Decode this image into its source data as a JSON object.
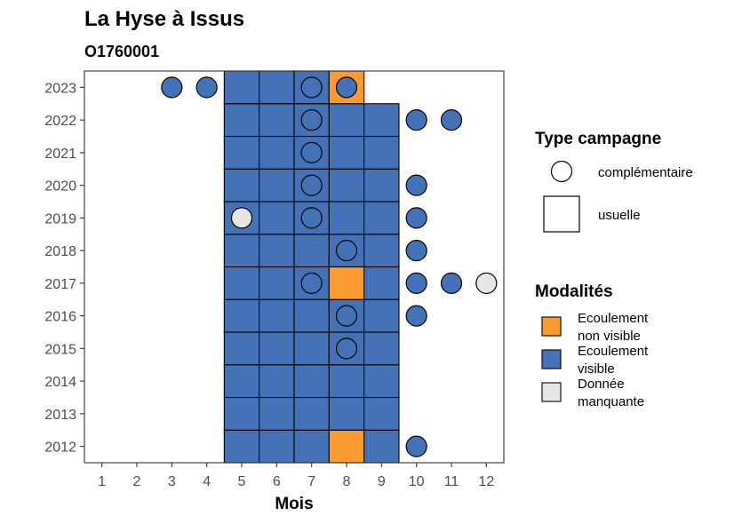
{
  "chart_data": {
    "type": "tile-scatter",
    "title": "La Hyse à Issus",
    "subtitle": "O1760001",
    "xlabel": "Mois",
    "ylabel": "",
    "x_ticks": [
      "1",
      "2",
      "3",
      "4",
      "5",
      "6",
      "7",
      "8",
      "9",
      "10",
      "11",
      "12"
    ],
    "y_ticks": [
      "2012",
      "2013",
      "2014",
      "2015",
      "2016",
      "2017",
      "2018",
      "2019",
      "2020",
      "2021",
      "2022",
      "2023"
    ],
    "xlim": [
      0.5,
      12.5
    ],
    "ylim": [
      2011.5,
      2023.5
    ],
    "grid": false,
    "legend_position": "right",
    "colors": {
      "ecoulement_non_visible": "#FD9B30",
      "ecoulement_visible": "#4572B7",
      "donnee_manquante": "#E6E6E6"
    },
    "legend_type": {
      "title": "Type campagne",
      "items": [
        {
          "key": "complementaire",
          "label": "complémentaire",
          "shape": "circle"
        },
        {
          "key": "usuelle",
          "label": "usuelle",
          "shape": "square"
        }
      ]
    },
    "legend_modalite": {
      "title": "Modalités",
      "items": [
        {
          "key": "ecoulement_non_visible",
          "lines": [
            "Ecoulement",
            "non visible"
          ]
        },
        {
          "key": "ecoulement_visible",
          "lines": [
            "Ecoulement",
            "visible"
          ]
        },
        {
          "key": "donnee_manquante",
          "lines": [
            "Donnée",
            "manquante"
          ]
        }
      ]
    },
    "usuelle": [
      {
        "year": 2012,
        "month": 5,
        "m": "ecoulement_visible"
      },
      {
        "year": 2012,
        "month": 6,
        "m": "ecoulement_visible"
      },
      {
        "year": 2012,
        "month": 7,
        "m": "ecoulement_visible"
      },
      {
        "year": 2012,
        "month": 8,
        "m": "ecoulement_non_visible"
      },
      {
        "year": 2012,
        "month": 9,
        "m": "ecoulement_visible"
      },
      {
        "year": 2013,
        "month": 5,
        "m": "ecoulement_visible"
      },
      {
        "year": 2013,
        "month": 6,
        "m": "ecoulement_visible"
      },
      {
        "year": 2013,
        "month": 7,
        "m": "ecoulement_visible"
      },
      {
        "year": 2013,
        "month": 8,
        "m": "ecoulement_visible"
      },
      {
        "year": 2013,
        "month": 9,
        "m": "ecoulement_visible"
      },
      {
        "year": 2014,
        "month": 5,
        "m": "ecoulement_visible"
      },
      {
        "year": 2014,
        "month": 6,
        "m": "ecoulement_visible"
      },
      {
        "year": 2014,
        "month": 7,
        "m": "ecoulement_visible"
      },
      {
        "year": 2014,
        "month": 8,
        "m": "ecoulement_visible"
      },
      {
        "year": 2014,
        "month": 9,
        "m": "ecoulement_visible"
      },
      {
        "year": 2015,
        "month": 5,
        "m": "ecoulement_visible"
      },
      {
        "year": 2015,
        "month": 6,
        "m": "ecoulement_visible"
      },
      {
        "year": 2015,
        "month": 7,
        "m": "ecoulement_visible"
      },
      {
        "year": 2015,
        "month": 8,
        "m": "ecoulement_visible"
      },
      {
        "year": 2015,
        "month": 9,
        "m": "ecoulement_visible"
      },
      {
        "year": 2016,
        "month": 5,
        "m": "ecoulement_visible"
      },
      {
        "year": 2016,
        "month": 6,
        "m": "ecoulement_visible"
      },
      {
        "year": 2016,
        "month": 7,
        "m": "ecoulement_visible"
      },
      {
        "year": 2016,
        "month": 8,
        "m": "ecoulement_visible"
      },
      {
        "year": 2016,
        "month": 9,
        "m": "ecoulement_visible"
      },
      {
        "year": 2017,
        "month": 5,
        "m": "ecoulement_visible"
      },
      {
        "year": 2017,
        "month": 6,
        "m": "ecoulement_visible"
      },
      {
        "year": 2017,
        "month": 7,
        "m": "ecoulement_visible"
      },
      {
        "year": 2017,
        "month": 8,
        "m": "ecoulement_non_visible"
      },
      {
        "year": 2017,
        "month": 9,
        "m": "ecoulement_visible"
      },
      {
        "year": 2018,
        "month": 5,
        "m": "ecoulement_visible"
      },
      {
        "year": 2018,
        "month": 6,
        "m": "ecoulement_visible"
      },
      {
        "year": 2018,
        "month": 7,
        "m": "ecoulement_visible"
      },
      {
        "year": 2018,
        "month": 8,
        "m": "ecoulement_visible"
      },
      {
        "year": 2018,
        "month": 9,
        "m": "ecoulement_visible"
      },
      {
        "year": 2019,
        "month": 5,
        "m": "ecoulement_visible"
      },
      {
        "year": 2019,
        "month": 6,
        "m": "ecoulement_visible"
      },
      {
        "year": 2019,
        "month": 7,
        "m": "ecoulement_visible"
      },
      {
        "year": 2019,
        "month": 8,
        "m": "ecoulement_visible"
      },
      {
        "year": 2019,
        "month": 9,
        "m": "ecoulement_visible"
      },
      {
        "year": 2020,
        "month": 5,
        "m": "ecoulement_visible"
      },
      {
        "year": 2020,
        "month": 6,
        "m": "ecoulement_visible"
      },
      {
        "year": 2020,
        "month": 7,
        "m": "ecoulement_visible"
      },
      {
        "year": 2020,
        "month": 8,
        "m": "ecoulement_visible"
      },
      {
        "year": 2020,
        "month": 9,
        "m": "ecoulement_visible"
      },
      {
        "year": 2021,
        "month": 5,
        "m": "ecoulement_visible"
      },
      {
        "year": 2021,
        "month": 6,
        "m": "ecoulement_visible"
      },
      {
        "year": 2021,
        "month": 7,
        "m": "ecoulement_visible"
      },
      {
        "year": 2021,
        "month": 8,
        "m": "ecoulement_visible"
      },
      {
        "year": 2021,
        "month": 9,
        "m": "ecoulement_visible"
      },
      {
        "year": 2022,
        "month": 5,
        "m": "ecoulement_visible"
      },
      {
        "year": 2022,
        "month": 6,
        "m": "ecoulement_visible"
      },
      {
        "year": 2022,
        "month": 7,
        "m": "ecoulement_visible"
      },
      {
        "year": 2022,
        "month": 8,
        "m": "ecoulement_visible"
      },
      {
        "year": 2022,
        "month": 9,
        "m": "ecoulement_visible"
      },
      {
        "year": 2023,
        "month": 5,
        "m": "ecoulement_visible"
      },
      {
        "year": 2023,
        "month": 6,
        "m": "ecoulement_visible"
      },
      {
        "year": 2023,
        "month": 7,
        "m": "ecoulement_visible"
      },
      {
        "year": 2023,
        "month": 8,
        "m": "ecoulement_non_visible"
      }
    ],
    "complementaire": [
      {
        "year": 2012,
        "month": 10,
        "m": "ecoulement_visible"
      },
      {
        "year": 2015,
        "month": 8,
        "m": "ecoulement_visible"
      },
      {
        "year": 2016,
        "month": 8,
        "m": "ecoulement_visible"
      },
      {
        "year": 2016,
        "month": 10,
        "m": "ecoulement_visible"
      },
      {
        "year": 2017,
        "month": 7,
        "m": "ecoulement_visible"
      },
      {
        "year": 2017,
        "month": 10,
        "m": "ecoulement_visible"
      },
      {
        "year": 2017,
        "month": 11,
        "m": "ecoulement_visible"
      },
      {
        "year": 2017,
        "month": 12,
        "m": "donnee_manquante"
      },
      {
        "year": 2018,
        "month": 8,
        "m": "ecoulement_visible"
      },
      {
        "year": 2018,
        "month": 10,
        "m": "ecoulement_visible"
      },
      {
        "year": 2019,
        "month": 5,
        "m": "donnee_manquante"
      },
      {
        "year": 2019,
        "month": 7,
        "m": "ecoulement_visible"
      },
      {
        "year": 2019,
        "month": 10,
        "m": "ecoulement_visible"
      },
      {
        "year": 2020,
        "month": 7,
        "m": "ecoulement_visible"
      },
      {
        "year": 2020,
        "month": 10,
        "m": "ecoulement_visible"
      },
      {
        "year": 2021,
        "month": 7,
        "m": "ecoulement_visible"
      },
      {
        "year": 2022,
        "month": 7,
        "m": "ecoulement_visible"
      },
      {
        "year": 2022,
        "month": 10,
        "m": "ecoulement_visible"
      },
      {
        "year": 2022,
        "month": 11,
        "m": "ecoulement_visible"
      },
      {
        "year": 2023,
        "month": 3,
        "m": "ecoulement_visible"
      },
      {
        "year": 2023,
        "month": 4,
        "m": "ecoulement_visible"
      },
      {
        "year": 2023,
        "month": 7,
        "m": "ecoulement_visible"
      },
      {
        "year": 2023,
        "month": 8,
        "m": "ecoulement_visible"
      }
    ]
  }
}
